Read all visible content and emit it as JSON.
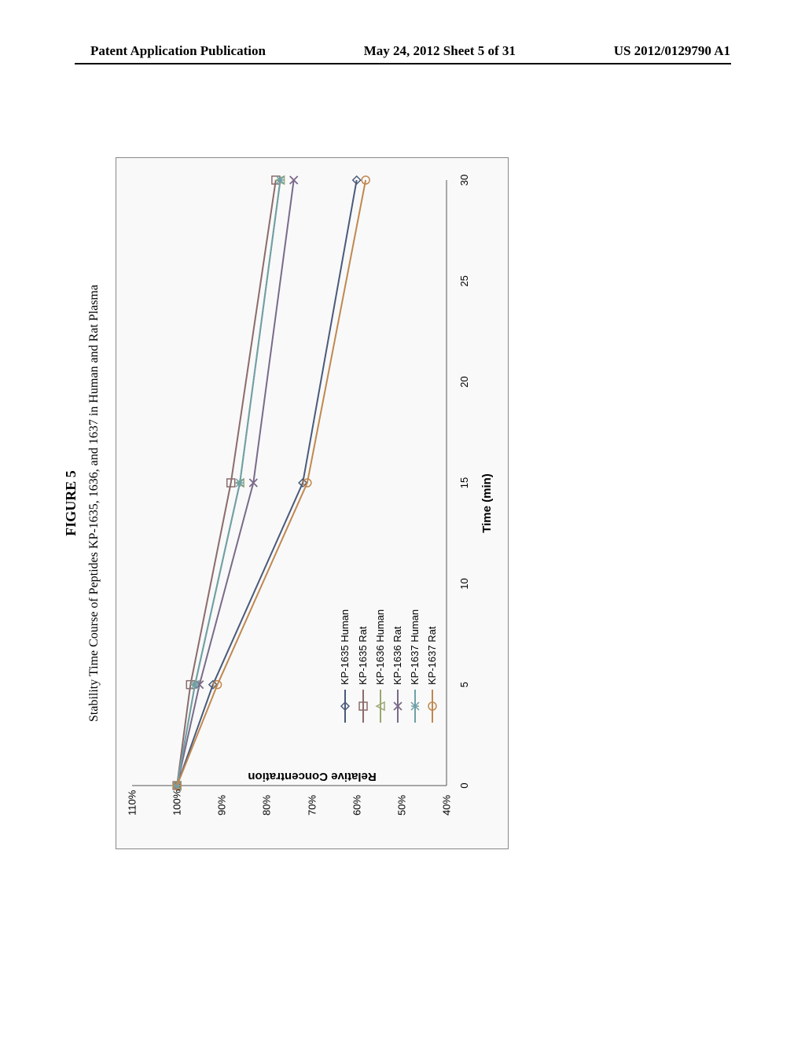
{
  "header": {
    "left": "Patent Application Publication",
    "center": "May 24, 2012  Sheet 5 of 31",
    "right": "US 2012/0129790 A1"
  },
  "figure": {
    "title": "FIGURE 5",
    "subtitle": "Stability Time Course of Peptides KP-1635, 1636, and 1637 in Human and Rat Plasma",
    "chart": {
      "type": "line",
      "xlabel": "Time (min)",
      "ylabel": "Relative Concentration",
      "xlim": [
        0,
        30
      ],
      "ylim": [
        40,
        110
      ],
      "xtick_step": 5,
      "ytick_step": 10,
      "ytick_suffix": "%",
      "background_color": "#f9f9f9",
      "border_color": "#888888",
      "grid": false,
      "axis_fontsize": 13,
      "label_fontsize": 15,
      "label_fontweight": "bold",
      "line_width": 2,
      "marker_size": 7,
      "series": [
        {
          "name": "KP-1635 Human",
          "marker": "diamond",
          "color": "#4a5a7a",
          "x": [
            0,
            5,
            15,
            30
          ],
          "y": [
            100,
            92,
            72,
            60
          ]
        },
        {
          "name": "KP-1635 Rat",
          "marker": "square",
          "color": "#8c6b6b",
          "x": [
            0,
            5,
            15,
            30
          ],
          "y": [
            100,
            97,
            88,
            78
          ]
        },
        {
          "name": "KP-1636 Human",
          "marker": "triangle",
          "color": "#9aa86f",
          "x": [
            0,
            5,
            15,
            30
          ],
          "y": [
            100,
            96,
            86,
            77
          ]
        },
        {
          "name": "KP-1636 Rat",
          "marker": "x",
          "color": "#7a6a8a",
          "x": [
            0,
            5,
            15,
            30
          ],
          "y": [
            100,
            95,
            83,
            74
          ]
        },
        {
          "name": "KP-1637 Human",
          "marker": "asterisk",
          "color": "#6fa0a8",
          "x": [
            0,
            5,
            15,
            30
          ],
          "y": [
            100,
            96,
            86,
            77
          ]
        },
        {
          "name": "KP-1637 Rat",
          "marker": "circle",
          "color": "#c08850",
          "x": [
            0,
            5,
            15,
            30
          ],
          "y": [
            100,
            91,
            71,
            58
          ]
        }
      ]
    }
  }
}
